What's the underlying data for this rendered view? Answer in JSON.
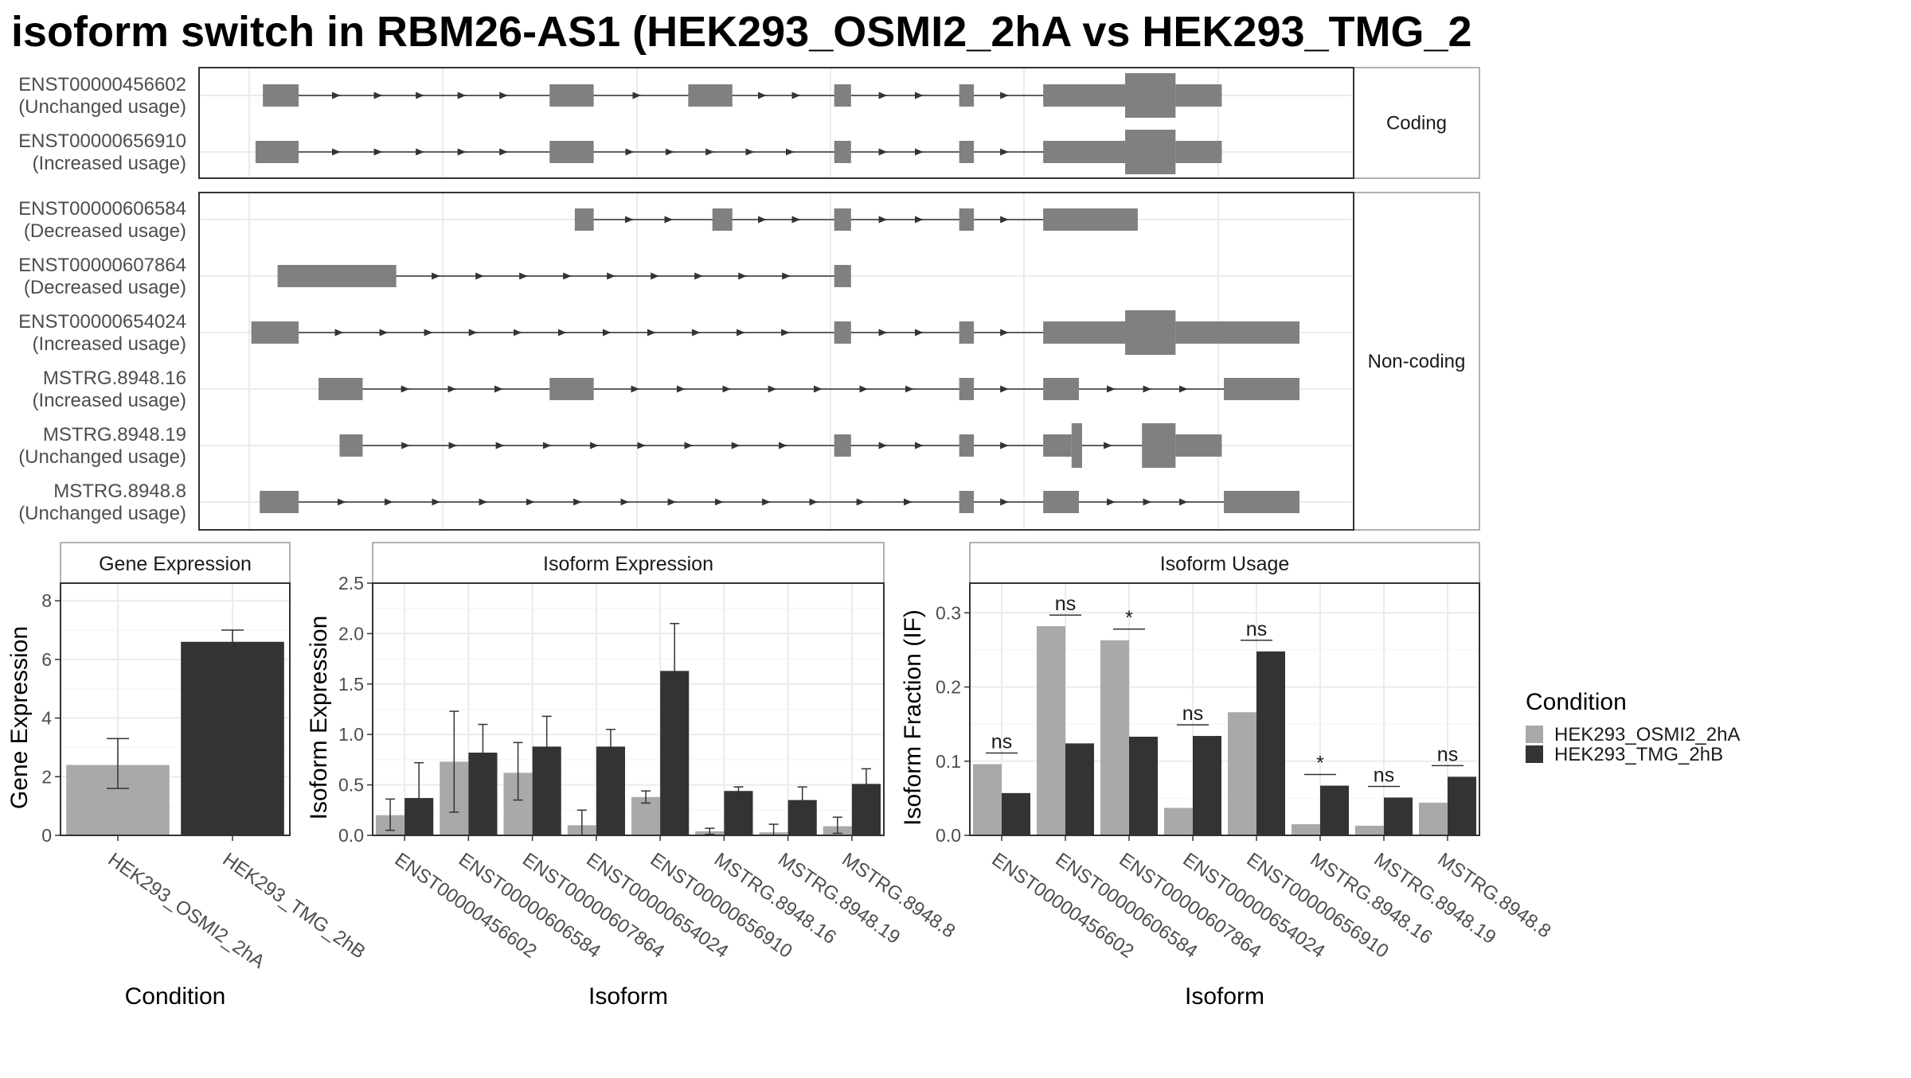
{
  "title": "isoform switch in RBM26-AS1 (HEK293_OSMI2_2hA vs HEK293_TMG_2",
  "colors": {
    "condA": "#a9a9a9",
    "condB": "#333333",
    "exon": "#808080",
    "frame": "#333333",
    "grid": "#ebebeb",
    "strip": "#ffffff"
  },
  "structure": {
    "groups": [
      {
        "label": "Coding",
        "transcripts": [
          {
            "name": "ENST00000456602",
            "usage": "(Unchanged usage)",
            "exons": [
              [
                0.013,
                0.047,
                "s"
              ],
              [
                0.286,
                0.328,
                "s"
              ],
              [
                0.418,
                0.46,
                "s"
              ],
              [
                0.557,
                0.573,
                "s"
              ],
              [
                0.676,
                0.69,
                "s"
              ],
              [
                0.756,
                0.834,
                "s"
              ],
              [
                0.834,
                0.882,
                "t"
              ],
              [
                0.882,
                0.926,
                "s"
              ]
            ]
          },
          {
            "name": "ENST00000656910",
            "usage": "(Increased usage)",
            "exons": [
              [
                0.006,
                0.047,
                "s"
              ],
              [
                0.286,
                0.328,
                "s"
              ],
              [
                0.557,
                0.573,
                "s"
              ],
              [
                0.676,
                0.69,
                "s"
              ],
              [
                0.756,
                0.834,
                "s"
              ],
              [
                0.834,
                0.882,
                "t"
              ],
              [
                0.882,
                0.926,
                "s"
              ]
            ]
          }
        ]
      },
      {
        "label": "Non-coding",
        "transcripts": [
          {
            "name": "ENST00000606584",
            "usage": "(Decreased usage)",
            "exons": [
              [
                0.31,
                0.328,
                "s"
              ],
              [
                0.441,
                0.46,
                "s"
              ],
              [
                0.557,
                0.573,
                "s"
              ],
              [
                0.676,
                0.69,
                "s"
              ],
              [
                0.756,
                0.846,
                "s"
              ]
            ]
          },
          {
            "name": "ENST00000607864",
            "usage": "(Decreased usage)",
            "exons": [
              [
                0.027,
                0.14,
                "s"
              ],
              [
                0.557,
                0.573,
                "s"
              ]
            ]
          },
          {
            "name": "ENST00000654024",
            "usage": "(Increased usage)",
            "exons": [
              [
                0.002,
                0.047,
                "s"
              ],
              [
                0.557,
                0.573,
                "s"
              ],
              [
                0.676,
                0.69,
                "s"
              ],
              [
                0.756,
                0.834,
                "s"
              ],
              [
                0.834,
                0.882,
                "t"
              ],
              [
                0.882,
                1.0,
                "s"
              ]
            ]
          },
          {
            "name": "MSTRG.8948.16",
            "usage": "(Increased usage)",
            "exons": [
              [
                0.066,
                0.108,
                "s"
              ],
              [
                0.286,
                0.328,
                "s"
              ],
              [
                0.676,
                0.69,
                "s"
              ],
              [
                0.756,
                0.79,
                "s"
              ],
              [
                0.928,
                1.0,
                "s"
              ]
            ]
          },
          {
            "name": "MSTRG.8948.19",
            "usage": "(Unchanged usage)",
            "exons": [
              [
                0.086,
                0.108,
                "s"
              ],
              [
                0.557,
                0.573,
                "s"
              ],
              [
                0.676,
                0.69,
                "s"
              ],
              [
                0.756,
                0.783,
                "s"
              ],
              [
                0.783,
                0.793,
                "t"
              ],
              [
                0.85,
                0.882,
                "t"
              ],
              [
                0.882,
                0.926,
                "s"
              ]
            ]
          },
          {
            "name": "MSTRG.8948.8",
            "usage": "(Unchanged usage)",
            "exons": [
              [
                0.01,
                0.047,
                "s"
              ],
              [
                0.676,
                0.69,
                "s"
              ],
              [
                0.756,
                0.79,
                "s"
              ],
              [
                0.928,
                1.0,
                "s"
              ]
            ]
          }
        ]
      }
    ]
  },
  "legend": {
    "title": "Condition",
    "entries": [
      {
        "label": "HEK293_OSMI2_2hA",
        "color": "#a9a9a9"
      },
      {
        "label": "HEK293_TMG_2hB",
        "color": "#333333"
      }
    ]
  },
  "chart_data": [
    {
      "type": "bar",
      "title": "Gene Expression",
      "xlabel": "Condition",
      "ylabel": "Gene Expression",
      "ylim": [
        0,
        8.6
      ],
      "yticks": [
        0,
        2,
        4,
        6,
        8
      ],
      "categories": [
        "HEK293_OSMI2_2hA",
        "HEK293_TMG_2hB"
      ],
      "values": [
        2.4,
        6.6
      ],
      "errors": [
        [
          1.6,
          3.3
        ],
        [
          6.2,
          7.0
        ]
      ]
    },
    {
      "type": "bar",
      "title": "Isoform Expression",
      "xlabel": "Isoform",
      "ylabel": "Isoform Expression",
      "ylim": [
        0,
        2.5
      ],
      "yticks": [
        0.0,
        0.5,
        1.0,
        1.5,
        2.0,
        2.5
      ],
      "categories": [
        "ENST00000456602",
        "ENST00000606584",
        "ENST00000607864",
        "ENST00000654024",
        "ENST00000656910",
        "MSTRG.8948.16",
        "MSTRG.8948.19",
        "MSTRG.8948.8"
      ],
      "series": [
        {
          "name": "HEK293_OSMI2_2hA",
          "values": [
            0.2,
            0.73,
            0.62,
            0.1,
            0.38,
            0.04,
            0.03,
            0.09
          ],
          "errors": [
            [
              0.05,
              0.36
            ],
            [
              0.23,
              1.23
            ],
            [
              0.35,
              0.92
            ],
            [
              0.0,
              0.25
            ],
            [
              0.32,
              0.44
            ],
            [
              0.01,
              0.07
            ],
            [
              0.0,
              0.11
            ],
            [
              0.02,
              0.18
            ]
          ]
        },
        {
          "name": "HEK293_TMG_2hB",
          "values": [
            0.37,
            0.82,
            0.88,
            0.88,
            1.63,
            0.44,
            0.35,
            0.51
          ],
          "errors": [
            [
              0.0,
              0.72
            ],
            [
              0.54,
              1.1
            ],
            [
              0.6,
              1.18
            ],
            [
              0.73,
              1.05
            ],
            [
              1.18,
              2.1
            ],
            [
              0.41,
              0.48
            ],
            [
              0.22,
              0.48
            ],
            [
              0.38,
              0.66
            ]
          ]
        }
      ]
    },
    {
      "type": "bar",
      "title": "Isoform Usage",
      "xlabel": "Isoform",
      "ylabel": "Isoform Fraction (IF)",
      "ylim": [
        0,
        0.34
      ],
      "yticks": [
        0.0,
        0.1,
        0.2,
        0.3
      ],
      "categories": [
        "ENST00000456602",
        "ENST00000606584",
        "ENST00000607864",
        "ENST00000654024",
        "ENST00000656910",
        "MSTRG.8948.16",
        "MSTRG.8948.19",
        "MSTRG.8948.8"
      ],
      "series": [
        {
          "name": "HEK293_OSMI2_2hA",
          "values": [
            0.096,
            0.282,
            0.263,
            0.037,
            0.166,
            0.015,
            0.013,
            0.044
          ]
        },
        {
          "name": "HEK293_TMG_2hB",
          "values": [
            0.057,
            0.124,
            0.133,
            0.134,
            0.248,
            0.067,
            0.051,
            0.079
          ]
        }
      ],
      "significance": [
        {
          "label": "ns",
          "y": 0.111
        },
        {
          "label": "ns",
          "y": 0.297
        },
        {
          "label": "*",
          "y": 0.278
        },
        {
          "label": "ns",
          "y": 0.149
        },
        {
          "label": "ns",
          "y": 0.263
        },
        {
          "label": "*",
          "y": 0.082
        },
        {
          "label": "ns",
          "y": 0.066
        },
        {
          "label": "ns",
          "y": 0.094
        }
      ]
    }
  ]
}
